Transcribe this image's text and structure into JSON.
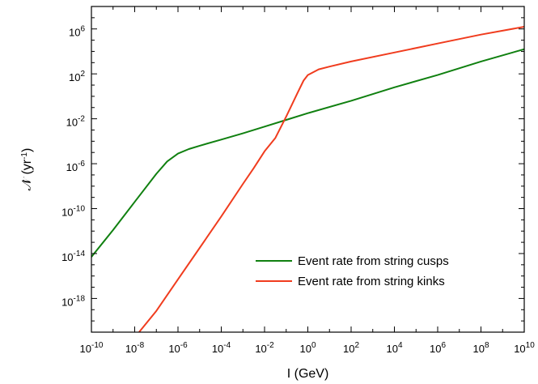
{
  "chart_data": {
    "type": "line",
    "xlabel": "I (GeV)",
    "ylabel": "𝒩̇ (yr⁻¹)",
    "ylabel_main": "𝒩̇ (yr",
    "ylabel_sup": "-1",
    "ylabel_close": ")",
    "x_scale": "log",
    "y_scale": "log",
    "xlim_log10": [
      -10,
      10
    ],
    "ylim_log10": [
      -21,
      8
    ],
    "grid": false,
    "legend_position": "bottom-right",
    "x_ticks": [
      {
        "base": "10",
        "exp": "-10"
      },
      {
        "base": "10",
        "exp": "-8"
      },
      {
        "base": "10",
        "exp": "-6"
      },
      {
        "base": "10",
        "exp": "-4"
      },
      {
        "base": "10",
        "exp": "-2"
      },
      {
        "base": "10",
        "exp": "0"
      },
      {
        "base": "10",
        "exp": "2"
      },
      {
        "base": "10",
        "exp": "4"
      },
      {
        "base": "10",
        "exp": "6"
      },
      {
        "base": "10",
        "exp": "8"
      },
      {
        "base": "10",
        "exp": "10"
      }
    ],
    "y_ticks": [
      {
        "base": "10",
        "exp": "-18"
      },
      {
        "base": "10",
        "exp": "-14"
      },
      {
        "base": "10",
        "exp": "-10"
      },
      {
        "base": "10",
        "exp": "-6"
      },
      {
        "base": "10",
        "exp": "-2"
      },
      {
        "base": "10",
        "exp": "2"
      },
      {
        "base": "10",
        "exp": "6"
      }
    ],
    "series": [
      {
        "name": "Event rate from string cusps",
        "color": "#108010",
        "log_points": [
          [
            -10,
            -14.3
          ],
          [
            -9,
            -11.9
          ],
          [
            -8,
            -9.4
          ],
          [
            -7,
            -6.9
          ],
          [
            -6.5,
            -5.8
          ],
          [
            -6,
            -5.1
          ],
          [
            -5.5,
            -4.7
          ],
          [
            -5,
            -4.4
          ],
          [
            -4,
            -3.85
          ],
          [
            -3,
            -3.3
          ],
          [
            -2,
            -2.7
          ],
          [
            -1,
            -2.1
          ],
          [
            0,
            -1.5
          ],
          [
            2,
            -0.4
          ],
          [
            4,
            0.8
          ],
          [
            6,
            1.9
          ],
          [
            8,
            3.1
          ],
          [
            10,
            4.2
          ]
        ]
      },
      {
        "name": "Event rate from string kinks",
        "color": "#f03c1e",
        "log_points": [
          [
            -7.8,
            -21
          ],
          [
            -7,
            -19.1
          ],
          [
            -6,
            -16.3
          ],
          [
            -5,
            -13.5
          ],
          [
            -4,
            -10.7
          ],
          [
            -3,
            -7.8
          ],
          [
            -2.5,
            -6.4
          ],
          [
            -2,
            -4.9
          ],
          [
            -1.5,
            -3.7
          ],
          [
            -1,
            -1.8
          ],
          [
            -0.5,
            0.2
          ],
          [
            -0.2,
            1.4
          ],
          [
            0,
            1.9
          ],
          [
            0.5,
            2.4
          ],
          [
            1,
            2.65
          ],
          [
            2,
            3.1
          ],
          [
            4,
            3.9
          ],
          [
            6,
            4.7
          ],
          [
            8,
            5.5
          ],
          [
            10,
            6.2
          ]
        ]
      }
    ]
  }
}
